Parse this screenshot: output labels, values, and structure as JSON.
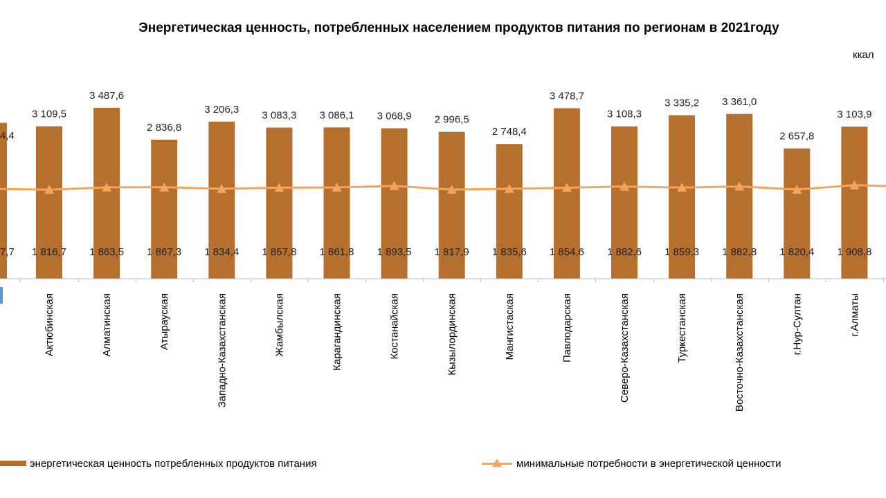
{
  "title": "Энергетическая ценность, потребленных населением продуктов питания по регионам в 2021году",
  "unit": "ккал",
  "colors": {
    "bar": "#B5702F",
    "line": "#F5A55B",
    "axis": "#BFBFBF",
    "cutoff_label": "#5B9BD5"
  },
  "chart_data": {
    "type": "bar",
    "title": "Энергетическая ценность, потребленных населением продуктов питания по регионам в 2021году",
    "ylabel": "ккал",
    "ylim": [
      0,
      4000
    ],
    "grid": false,
    "legend_position": "bottom",
    "categories": [
      "Актюбинская",
      "Алматинская",
      "Атырауская",
      "Западно-Казахстанская",
      "Жамбылская",
      "Карагандинская",
      "Костанайская",
      "Кызылординская",
      "Мангистаская",
      "Павлодарская",
      "Северо-Казахстанская",
      "Туркестанская",
      "Восточно-Казахстанская",
      "г.Нур-Султан",
      "г.Алматы"
    ],
    "series": [
      {
        "name": "энергетическая ценность потребленных продуктов питания",
        "type": "bar",
        "values": [
          3109.5,
          3487.6,
          2836.8,
          3206.3,
          3083.3,
          3086.1,
          3068.9,
          2996.5,
          2748.4,
          3478.7,
          3108.3,
          3335.2,
          3361.0,
          2657.8,
          3103.9
        ],
        "labels": [
          "3 109,5",
          "3 487,6",
          "2 836,8",
          "3 206,3",
          "3 083,3",
          "3 086,1",
          "3 068,9",
          "2 996,5",
          "2 748,4",
          "3 478,7",
          "3 108,3",
          "3 335,2",
          "3 361,0",
          "2 657,8",
          "3 103,9"
        ]
      },
      {
        "name": "минимальные потребности в энергетической ценности",
        "type": "line",
        "values": [
          1816.7,
          1863.5,
          1867.3,
          1834.4,
          1857.8,
          1861.8,
          1893.5,
          1817.9,
          1835.6,
          1854.6,
          1882.6,
          1859.3,
          1882.8,
          1820.4,
          1908.8
        ],
        "labels": [
          "1 816,7",
          "1 863,5",
          "1 867,3",
          "1 834,4",
          "1 857,8",
          "1 861,8",
          "1 893,5",
          "1 817,9",
          "1 835,6",
          "1 854,6",
          "1 882,6",
          "1 859,3",
          "1 882,8",
          "1 820,4",
          "1 908,8"
        ]
      }
    ],
    "partial_left": {
      "bar_label": "4,4",
      "line_label": "7,7"
    }
  },
  "legend": {
    "bar_label": "энергетическая ценность потребленных продуктов питания",
    "line_label": "минимальные потребности в энергетической ценности"
  }
}
